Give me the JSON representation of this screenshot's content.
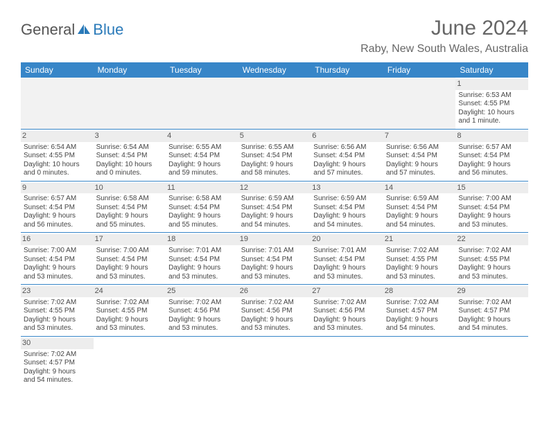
{
  "logo": {
    "text1": "General",
    "text2": "Blue"
  },
  "title": "June 2024",
  "location": "Raby, New South Wales, Australia",
  "colors": {
    "header_bg": "#3786c8",
    "header_text": "#ffffff",
    "border": "#3786c8",
    "datebar_bg": "#ededed",
    "empty_bg": "#f2f2f2",
    "text": "#444444",
    "title_text": "#666666",
    "logo_blue": "#2a7ab9"
  },
  "day_headers": [
    "Sunday",
    "Monday",
    "Tuesday",
    "Wednesday",
    "Thursday",
    "Friday",
    "Saturday"
  ],
  "weeks": [
    [
      null,
      null,
      null,
      null,
      null,
      null,
      {
        "n": "1",
        "sr": "Sunrise: 6:53 AM",
        "ss": "Sunset: 4:55 PM",
        "d1": "Daylight: 10 hours",
        "d2": "and 1 minute."
      }
    ],
    [
      {
        "n": "2",
        "sr": "Sunrise: 6:54 AM",
        "ss": "Sunset: 4:55 PM",
        "d1": "Daylight: 10 hours",
        "d2": "and 0 minutes."
      },
      {
        "n": "3",
        "sr": "Sunrise: 6:54 AM",
        "ss": "Sunset: 4:54 PM",
        "d1": "Daylight: 10 hours",
        "d2": "and 0 minutes."
      },
      {
        "n": "4",
        "sr": "Sunrise: 6:55 AM",
        "ss": "Sunset: 4:54 PM",
        "d1": "Daylight: 9 hours",
        "d2": "and 59 minutes."
      },
      {
        "n": "5",
        "sr": "Sunrise: 6:55 AM",
        "ss": "Sunset: 4:54 PM",
        "d1": "Daylight: 9 hours",
        "d2": "and 58 minutes."
      },
      {
        "n": "6",
        "sr": "Sunrise: 6:56 AM",
        "ss": "Sunset: 4:54 PM",
        "d1": "Daylight: 9 hours",
        "d2": "and 57 minutes."
      },
      {
        "n": "7",
        "sr": "Sunrise: 6:56 AM",
        "ss": "Sunset: 4:54 PM",
        "d1": "Daylight: 9 hours",
        "d2": "and 57 minutes."
      },
      {
        "n": "8",
        "sr": "Sunrise: 6:57 AM",
        "ss": "Sunset: 4:54 PM",
        "d1": "Daylight: 9 hours",
        "d2": "and 56 minutes."
      }
    ],
    [
      {
        "n": "9",
        "sr": "Sunrise: 6:57 AM",
        "ss": "Sunset: 4:54 PM",
        "d1": "Daylight: 9 hours",
        "d2": "and 56 minutes."
      },
      {
        "n": "10",
        "sr": "Sunrise: 6:58 AM",
        "ss": "Sunset: 4:54 PM",
        "d1": "Daylight: 9 hours",
        "d2": "and 55 minutes."
      },
      {
        "n": "11",
        "sr": "Sunrise: 6:58 AM",
        "ss": "Sunset: 4:54 PM",
        "d1": "Daylight: 9 hours",
        "d2": "and 55 minutes."
      },
      {
        "n": "12",
        "sr": "Sunrise: 6:59 AM",
        "ss": "Sunset: 4:54 PM",
        "d1": "Daylight: 9 hours",
        "d2": "and 54 minutes."
      },
      {
        "n": "13",
        "sr": "Sunrise: 6:59 AM",
        "ss": "Sunset: 4:54 PM",
        "d1": "Daylight: 9 hours",
        "d2": "and 54 minutes."
      },
      {
        "n": "14",
        "sr": "Sunrise: 6:59 AM",
        "ss": "Sunset: 4:54 PM",
        "d1": "Daylight: 9 hours",
        "d2": "and 54 minutes."
      },
      {
        "n": "15",
        "sr": "Sunrise: 7:00 AM",
        "ss": "Sunset: 4:54 PM",
        "d1": "Daylight: 9 hours",
        "d2": "and 53 minutes."
      }
    ],
    [
      {
        "n": "16",
        "sr": "Sunrise: 7:00 AM",
        "ss": "Sunset: 4:54 PM",
        "d1": "Daylight: 9 hours",
        "d2": "and 53 minutes."
      },
      {
        "n": "17",
        "sr": "Sunrise: 7:00 AM",
        "ss": "Sunset: 4:54 PM",
        "d1": "Daylight: 9 hours",
        "d2": "and 53 minutes."
      },
      {
        "n": "18",
        "sr": "Sunrise: 7:01 AM",
        "ss": "Sunset: 4:54 PM",
        "d1": "Daylight: 9 hours",
        "d2": "and 53 minutes."
      },
      {
        "n": "19",
        "sr": "Sunrise: 7:01 AM",
        "ss": "Sunset: 4:54 PM",
        "d1": "Daylight: 9 hours",
        "d2": "and 53 minutes."
      },
      {
        "n": "20",
        "sr": "Sunrise: 7:01 AM",
        "ss": "Sunset: 4:54 PM",
        "d1": "Daylight: 9 hours",
        "d2": "and 53 minutes."
      },
      {
        "n": "21",
        "sr": "Sunrise: 7:02 AM",
        "ss": "Sunset: 4:55 PM",
        "d1": "Daylight: 9 hours",
        "d2": "and 53 minutes."
      },
      {
        "n": "22",
        "sr": "Sunrise: 7:02 AM",
        "ss": "Sunset: 4:55 PM",
        "d1": "Daylight: 9 hours",
        "d2": "and 53 minutes."
      }
    ],
    [
      {
        "n": "23",
        "sr": "Sunrise: 7:02 AM",
        "ss": "Sunset: 4:55 PM",
        "d1": "Daylight: 9 hours",
        "d2": "and 53 minutes."
      },
      {
        "n": "24",
        "sr": "Sunrise: 7:02 AM",
        "ss": "Sunset: 4:55 PM",
        "d1": "Daylight: 9 hours",
        "d2": "and 53 minutes."
      },
      {
        "n": "25",
        "sr": "Sunrise: 7:02 AM",
        "ss": "Sunset: 4:56 PM",
        "d1": "Daylight: 9 hours",
        "d2": "and 53 minutes."
      },
      {
        "n": "26",
        "sr": "Sunrise: 7:02 AM",
        "ss": "Sunset: 4:56 PM",
        "d1": "Daylight: 9 hours",
        "d2": "and 53 minutes."
      },
      {
        "n": "27",
        "sr": "Sunrise: 7:02 AM",
        "ss": "Sunset: 4:56 PM",
        "d1": "Daylight: 9 hours",
        "d2": "and 53 minutes."
      },
      {
        "n": "28",
        "sr": "Sunrise: 7:02 AM",
        "ss": "Sunset: 4:57 PM",
        "d1": "Daylight: 9 hours",
        "d2": "and 54 minutes."
      },
      {
        "n": "29",
        "sr": "Sunrise: 7:02 AM",
        "ss": "Sunset: 4:57 PM",
        "d1": "Daylight: 9 hours",
        "d2": "and 54 minutes."
      }
    ],
    [
      {
        "n": "30",
        "sr": "Sunrise: 7:02 AM",
        "ss": "Sunset: 4:57 PM",
        "d1": "Daylight: 9 hours",
        "d2": "and 54 minutes."
      },
      null,
      null,
      null,
      null,
      null,
      null
    ]
  ]
}
